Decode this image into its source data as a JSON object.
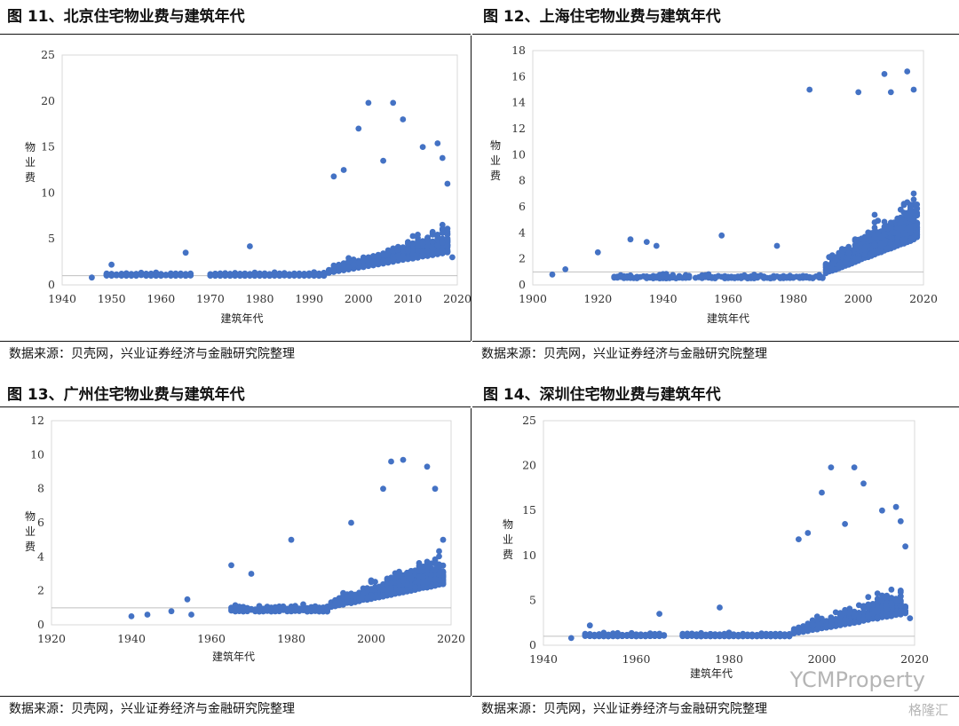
{
  "source_text": "数据来源：贝壳网，兴业证券经济与金融研究院整理",
  "watermark": {
    "main": "YCMProperty",
    "corner": "格隆汇"
  },
  "chart_data": [
    {
      "title": "图 11、北京住宅物业费与建筑年代",
      "type": "scatter",
      "xlabel": "建筑年代",
      "ylabel": "物业费",
      "xlim": [
        1940,
        2020
      ],
      "ylim": [
        0,
        25
      ],
      "xticks": [
        1940,
        1950,
        1960,
        1970,
        1980,
        1990,
        2000,
        2010,
        2020
      ],
      "yticks": [
        0,
        5,
        10,
        15,
        20,
        25
      ],
      "color": "#4472C4",
      "sample_points": [
        [
          1946,
          0.8
        ],
        [
          1950,
          2.2
        ],
        [
          1965,
          3.5
        ],
        [
          1978,
          4.2
        ],
        [
          1995,
          11.8
        ],
        [
          1997,
          12.5
        ],
        [
          2000,
          17.0
        ],
        [
          2002,
          19.8
        ],
        [
          2005,
          13.5
        ],
        [
          2007,
          19.8
        ],
        [
          2009,
          18.0
        ],
        [
          2013,
          15.0
        ],
        [
          2016,
          15.4
        ],
        [
          2017,
          13.8
        ],
        [
          2018,
          11.0
        ],
        [
          2019,
          3.0
        ]
      ]
    },
    {
      "title": "图 12、上海住宅物业费与建筑年代",
      "type": "scatter",
      "xlabel": "建筑年代",
      "ylabel": "物业费",
      "xlim": [
        1900,
        2020
      ],
      "ylim": [
        0,
        18
      ],
      "xticks": [
        1900,
        1920,
        1940,
        1960,
        1980,
        2000,
        2020
      ],
      "yticks": [
        0,
        2,
        4,
        6,
        8,
        10,
        12,
        14,
        16,
        18
      ],
      "color": "#4472C4",
      "sample_points": [
        [
          1906,
          0.8
        ],
        [
          1910,
          1.2
        ],
        [
          1920,
          2.5
        ],
        [
          1930,
          3.5
        ],
        [
          1935,
          3.3
        ],
        [
          1938,
          3.0
        ],
        [
          1958,
          3.8
        ],
        [
          1975,
          3.0
        ],
        [
          1985,
          15.0
        ],
        [
          2000,
          14.8
        ],
        [
          2008,
          16.2
        ],
        [
          2010,
          14.8
        ],
        [
          2015,
          16.4
        ],
        [
          2017,
          15.0
        ]
      ]
    },
    {
      "title": "图 13、广州住宅物业费与建筑年代",
      "type": "scatter",
      "xlabel": "建筑年代",
      "ylabel": "物业费",
      "xlim": [
        1920,
        2020
      ],
      "ylim": [
        0,
        12
      ],
      "xticks": [
        1920,
        1940,
        1960,
        1980,
        2000,
        2020
      ],
      "yticks": [
        0,
        2,
        4,
        6,
        8,
        10,
        12
      ],
      "color": "#4472C4",
      "sample_points": [
        [
          1940,
          0.5
        ],
        [
          1944,
          0.6
        ],
        [
          1950,
          0.8
        ],
        [
          1954,
          1.5
        ],
        [
          1955,
          0.6
        ],
        [
          1965,
          3.5
        ],
        [
          1970,
          3.0
        ],
        [
          1980,
          5.0
        ],
        [
          1995,
          6.0
        ],
        [
          2003,
          8.0
        ],
        [
          2005,
          9.6
        ],
        [
          2008,
          9.7
        ],
        [
          2014,
          9.3
        ],
        [
          2016,
          8.0
        ],
        [
          2018,
          5.0
        ]
      ]
    },
    {
      "title": "图 14、深圳住宅物业费与建筑年代",
      "type": "scatter",
      "xlabel": "建筑年代",
      "ylabel": "物业费",
      "xlim": [
        1940,
        2020
      ],
      "ylim": [
        0,
        25
      ],
      "xticks": [
        1940,
        1960,
        1980,
        2000,
        2020
      ],
      "yticks": [
        0,
        5,
        10,
        15,
        20,
        25
      ],
      "color": "#4472C4",
      "sample_points": [
        [
          1946,
          0.8
        ],
        [
          1950,
          2.2
        ],
        [
          1965,
          3.5
        ],
        [
          1978,
          4.2
        ],
        [
          1995,
          11.8
        ],
        [
          1997,
          12.5
        ],
        [
          2000,
          17.0
        ],
        [
          2002,
          19.8
        ],
        [
          2005,
          13.5
        ],
        [
          2007,
          19.8
        ],
        [
          2009,
          18.0
        ],
        [
          2013,
          15.0
        ],
        [
          2016,
          15.4
        ],
        [
          2017,
          13.8
        ],
        [
          2018,
          11.0
        ],
        [
          2019,
          3.0
        ]
      ]
    }
  ]
}
